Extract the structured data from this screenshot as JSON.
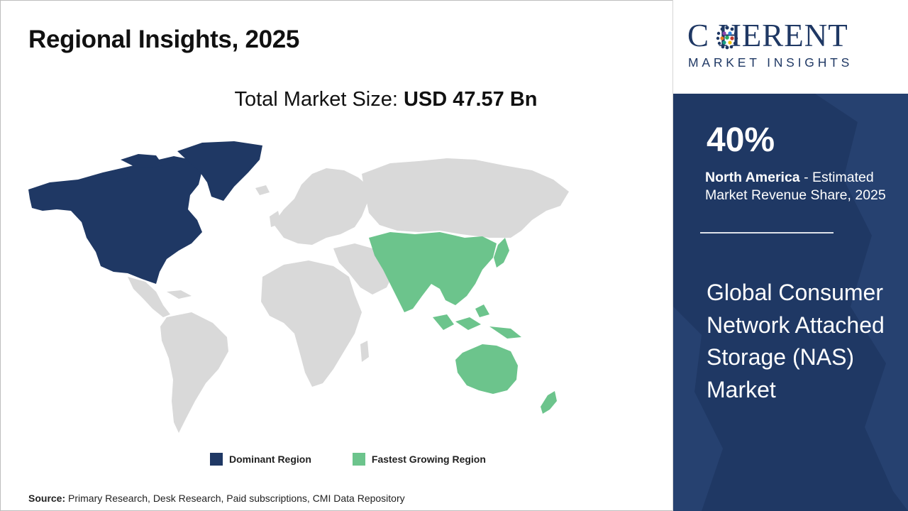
{
  "header": {
    "title": "Regional Insights, 2025"
  },
  "market_size": {
    "label": "Total Market Size:",
    "value": "USD 47.57 Bn"
  },
  "legend": [
    {
      "label": "Dominant Region",
      "color": "#1f3864"
    },
    {
      "label": "Fastest Growing Region",
      "color": "#6cc48c"
    }
  ],
  "map": {
    "base_color": "#d9d9d9",
    "dominant_region": "North America",
    "fastest_growing_region": "Asia Pacific"
  },
  "source": {
    "label": "Source:",
    "text": "Primary Research, Desk Research, Paid subscriptions, CMI Data Repository"
  },
  "logo": {
    "primary": "C  HERENT",
    "secondary": "MARKET INSIGHTS",
    "color": "#1f3864"
  },
  "stat": {
    "value": "40%",
    "region": "North America",
    "description": " - Estimated Market Revenue Share, 2025"
  },
  "market_name": "Global Consumer Network Attached Storage (NAS) Market",
  "colors": {
    "panel": "#1f3864",
    "dominant": "#1f3864",
    "growing": "#6cc48c",
    "land": "#d9d9d9"
  }
}
